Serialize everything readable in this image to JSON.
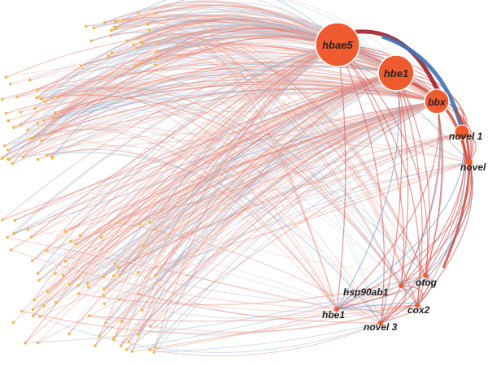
{
  "nodes": [
    {
      "label": "hbae5"
    },
    {
      "label": "hbe1"
    },
    {
      "label": "bbx"
    },
    {
      "label": "novel 1"
    },
    {
      "label": "novel"
    },
    {
      "label": "otog"
    },
    {
      "label": "hsp90ab1"
    },
    {
      "label": "cox2"
    },
    {
      "label": "hbe1"
    },
    {
      "label": "novel 3"
    }
  ]
}
